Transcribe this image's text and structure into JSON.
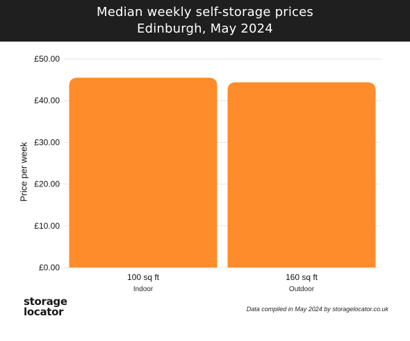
{
  "header": {
    "title": "Median weekly self-storage prices",
    "subtitle": "Edinburgh, May 2024"
  },
  "chart_data": {
    "type": "bar",
    "title": "Median weekly self-storage prices",
    "subtitle": "Edinburgh, May 2024",
    "ylabel": "Price per week",
    "xlabel": "",
    "categories": [
      "100 sq ft",
      "160 sq ft"
    ],
    "category_sublabels": [
      "Indoor",
      "Outdoor"
    ],
    "values": [
      45.5,
      44.4
    ],
    "ylim": [
      0,
      50
    ],
    "yticks": [
      0,
      10,
      20,
      30,
      40,
      50
    ],
    "ytick_labels": [
      "£0.00",
      "£10.00",
      "£20.00",
      "£30.00",
      "£40.00",
      "£50.00"
    ],
    "grid": true,
    "bar_color": "#ff8c2a"
  },
  "footer": {
    "logo_line1": "storage",
    "logo_line2": "locator",
    "credit": "Data compiled in May 2024 by storagelocator.co.uk"
  },
  "colors": {
    "header_bg": "#1f1f1f",
    "bar": "#ff8c2a",
    "grid": "#e3e3e3"
  }
}
